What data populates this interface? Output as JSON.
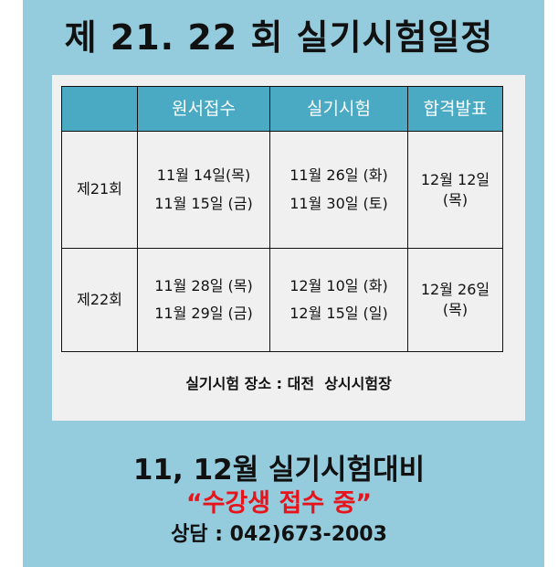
{
  "title": "제 21. 22 회 실기시험일정",
  "table": {
    "headers": [
      "",
      "원서접수",
      "실기시험",
      "합격발표"
    ],
    "rows": [
      {
        "round": "제21회",
        "apply": [
          "11월 14일(목)",
          "11월 15일 (금)"
        ],
        "exam": [
          "11월 26일 (화)",
          "11월 30일 (토)"
        ],
        "result": [
          "12월 12일",
          "(목)"
        ]
      },
      {
        "round": "제22회",
        "apply": [
          "11월 28일 (목)",
          "11월 29일 (금)"
        ],
        "exam": [
          "12월 10일 (화)",
          "12월 15일 (일)"
        ],
        "result": [
          "12월 26일",
          "(목)"
        ]
      }
    ]
  },
  "venue": "실기시험 장소 : 대전  상시시험장",
  "promo": {
    "line1": "11, 12월 실기시험대비",
    "line2": "“수강생 접수 중”",
    "line3": "상담 : 042)673-2003"
  },
  "colors": {
    "background": "#94cbdd",
    "header": "#4aaac4",
    "highlight": "#e8141c"
  }
}
